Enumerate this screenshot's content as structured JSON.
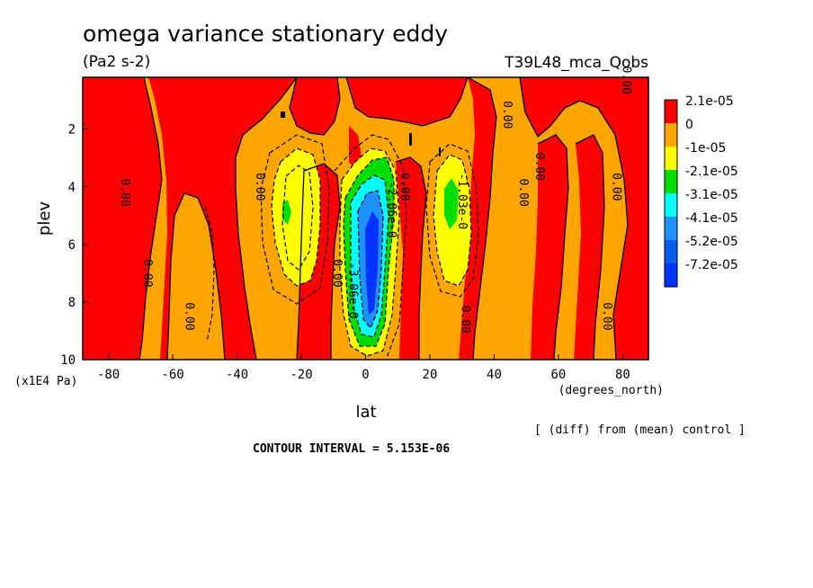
{
  "chart_data": {
    "type": "heatmap",
    "title": "omega variance stationary eddy",
    "units": "(Pa2 s-2)",
    "experiment": "T39L48_mca_Qobs",
    "xlabel": "lat",
    "xunits": "(degrees_north)",
    "ylabel": "plev",
    "yunits": "(x1E4 Pa)",
    "xlim": [
      -88,
      88
    ],
    "ylim": [
      10,
      0.2
    ],
    "x_ticks": [
      -80,
      -60,
      -40,
      -20,
      0,
      20,
      40,
      60,
      80
    ],
    "y_ticks": [
      2,
      4,
      6,
      8,
      10
    ],
    "legend": {
      "placement": "right",
      "labels": [
        "2.1e-05",
        "0",
        "-1e-05",
        "-2.1e-05",
        "-3.1e-05",
        "-4.1e-05",
        "-5.2e-05",
        "-7.2e-05"
      ],
      "colors": [
        "#ff0000",
        "#ffa500",
        "#ffff00",
        "#00dd00",
        "#00ffff",
        "#1e90ff",
        "#0a5cf0",
        "#0033ff"
      ]
    },
    "contour_labels": [
      {
        "text": "0.00",
        "x": -76,
        "y": 4.2
      },
      {
        "text": "0.00",
        "x": -69,
        "y": 7.0
      },
      {
        "text": "0.00",
        "x": -56,
        "y": 8.5
      },
      {
        "text": "0.00",
        "x": -34,
        "y": 4.0
      },
      {
        "text": "0.00",
        "x": -10,
        "y": 7.0
      },
      {
        "text": "-3.06e-0",
        "x": -5,
        "y": 7.6
      },
      {
        "text": "-2.06e-0",
        "x": 7,
        "y": 4.8
      },
      {
        "text": "0.00",
        "x": 11,
        "y": 4.0
      },
      {
        "text": "-1.03e-0",
        "x": 29,
        "y": 4.5
      },
      {
        "text": "0.00",
        "x": 30,
        "y": 8.6
      },
      {
        "text": "0.00",
        "x": 43,
        "y": 1.5
      },
      {
        "text": "0.00",
        "x": 48,
        "y": 4.2
      },
      {
        "text": "0.00",
        "x": 53,
        "y": 3.3
      },
      {
        "text": "0.00",
        "x": 77,
        "y": 4.0
      },
      {
        "text": "0.00",
        "x": 74,
        "y": 8.5
      },
      {
        "text": "0.00",
        "x": 80,
        "y": 0.3
      }
    ],
    "extrema": [
      {
        "x": -78,
        "y": 5,
        "value_bin": "2.1e-05"
      },
      {
        "x": -48,
        "y": 6,
        "value_bin": "-1e-05"
      },
      {
        "x": -25,
        "y": 4.8,
        "value_bin": "-3.1e-05"
      },
      {
        "x": 2,
        "y": 6.2,
        "value_bin": "-7.2e-05"
      },
      {
        "x": 26,
        "y": 4.5,
        "value_bin": "-3.1e-05"
      },
      {
        "x": 68,
        "y": 5,
        "value_bin": "2.1e-05"
      }
    ],
    "note": "[ (diff) from (mean) control ]",
    "contour_interval": "CONTOUR INTERVAL = 5.153E-06"
  }
}
